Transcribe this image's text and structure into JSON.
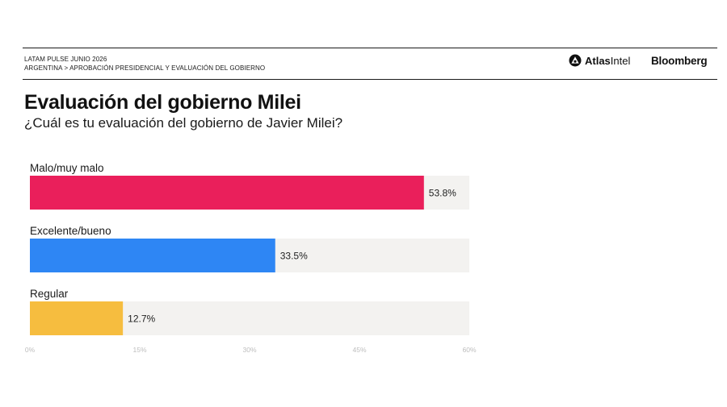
{
  "header": {
    "line1": "LATAM PULSE JUNIO 2026",
    "line2": "ARGENTINA > APROBACIÓN PRESIDENCIAL Y EVALUACIÓN DEL GOBIERNO",
    "brand_atlas_bold": "Atlas",
    "brand_atlas_light": "Intel",
    "brand_bloomberg": "Bloomberg"
  },
  "chart_data": {
    "type": "bar",
    "orientation": "horizontal",
    "title": "Evaluación del gobierno Milei",
    "subtitle": "¿Cuál es tu evaluación del gobierno de Javier Milei?",
    "categories": [
      "Malo/muy malo",
      "Excelente/bueno",
      "Regular"
    ],
    "values": [
      53.8,
      33.5,
      12.7
    ],
    "value_labels": [
      "53.8%",
      "33.5%",
      "12.7%"
    ],
    "colors": [
      "#ea1f5b",
      "#2e86f4",
      "#f6bd3f"
    ],
    "track_color": "#f3f2f0",
    "xlim": [
      0,
      60
    ],
    "xticks": [
      0,
      15,
      30,
      45,
      60
    ],
    "xtick_labels": [
      "0%",
      "15%",
      "30%",
      "45%",
      "60%"
    ],
    "grid": false,
    "legend": "none"
  }
}
